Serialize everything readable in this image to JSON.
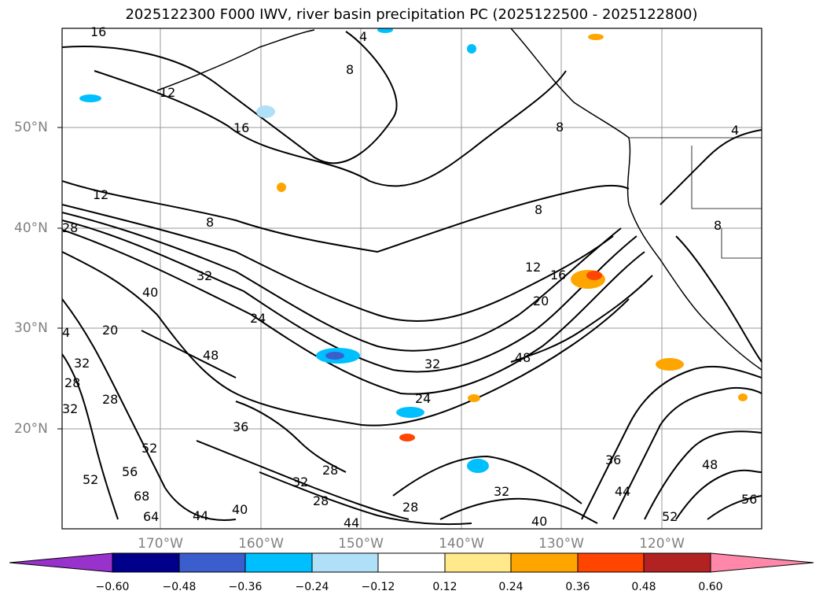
{
  "title": "2025122300 F000 IWV, river basin precipitation PC (2025122500 - 2025122800)",
  "map": {
    "lat_labels": [
      "50°N",
      "40°N",
      "30°N",
      "20°N"
    ],
    "lon_labels": [
      "170°W",
      "160°W",
      "150°W",
      "140°W",
      "130°W",
      "120°W"
    ],
    "contour_labels": [
      "16",
      "4",
      "8",
      "16",
      "12",
      "28",
      "8",
      "8",
      "12",
      "16",
      "20",
      "32",
      "40",
      "24",
      "4",
      "20",
      "48",
      "32",
      "28",
      "32",
      "28",
      "48",
      "52",
      "56",
      "52",
      "68",
      "64",
      "44",
      "40",
      "36",
      "28",
      "32",
      "28",
      "24",
      "32",
      "28",
      "40",
      "44",
      "36",
      "44",
      "48",
      "52",
      "56",
      "4",
      "8",
      "8",
      "12",
      "32"
    ]
  },
  "colorbar": {
    "ticks": [
      "−0.60",
      "−0.48",
      "−0.36",
      "−0.24",
      "−0.12",
      "0.12",
      "0.24",
      "0.36",
      "0.48",
      "0.60"
    ],
    "colors": [
      "#9932cc",
      "#00008b",
      "#3a5fcd",
      "#00bfff",
      "#b0e0f8",
      "#ffffff",
      "#ffe98a",
      "#ffa500",
      "#ff4500",
      "#b22222",
      "#ff88aa"
    ]
  }
}
